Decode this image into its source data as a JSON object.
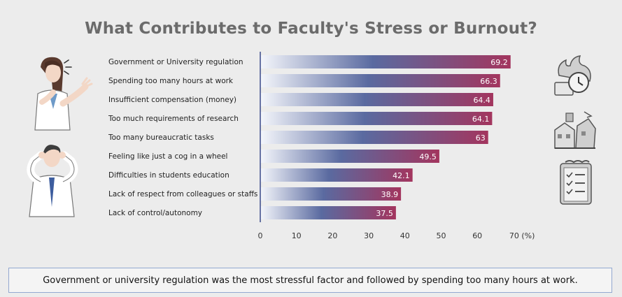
{
  "title": "What Contributes to Faculty's Stress or Burnout?",
  "footer": "Government or university regulation was the most stressful factor and followed by spending too many hours at work.",
  "colors": {
    "bar_start": "#f4f6fb",
    "bar_mid": "#5a6aa0",
    "bar_end": "#a3355e",
    "axis": "#3a4a8a",
    "background": "#ececec"
  },
  "icons": {
    "left_top": "stressed-woman-icon",
    "left_bottom": "man-covering-ears-icon",
    "right_top": "burning-clock-icon",
    "right_middle": "collapsing-buildings-icon",
    "right_bottom": "checklist-clipboard-icon"
  },
  "chart_data": {
    "type": "bar",
    "orientation": "horizontal",
    "title": "What Contributes to Faculty's Stress or Burnout?",
    "categories": [
      "Government or University regulation",
      "Spending too many hours at work",
      "Insufficient compensation (money)",
      "Too much requirements of research",
      "Too many bureaucratic tasks",
      "Feeling like just a cog in a wheel",
      "Difficulties in students education",
      "Lack of respect from colleagues or staffs",
      "Lack of control/autonomy"
    ],
    "values": [
      69.2,
      66.3,
      64.4,
      64.1,
      63,
      49.5,
      42.1,
      38.9,
      37.5
    ],
    "value_labels": [
      "69.2",
      "66.3",
      "64.4",
      "64.1",
      "63",
      "49.5",
      "42.1",
      "38.9",
      "37.5"
    ],
    "xticks": [
      "0",
      "10",
      "20",
      "30",
      "40",
      "50",
      "60",
      "70 (%)"
    ],
    "tick_values": [
      0,
      10,
      20,
      30,
      40,
      50,
      60,
      70
    ],
    "xlim": [
      0,
      70
    ],
    "grid": false,
    "legend": "none"
  }
}
